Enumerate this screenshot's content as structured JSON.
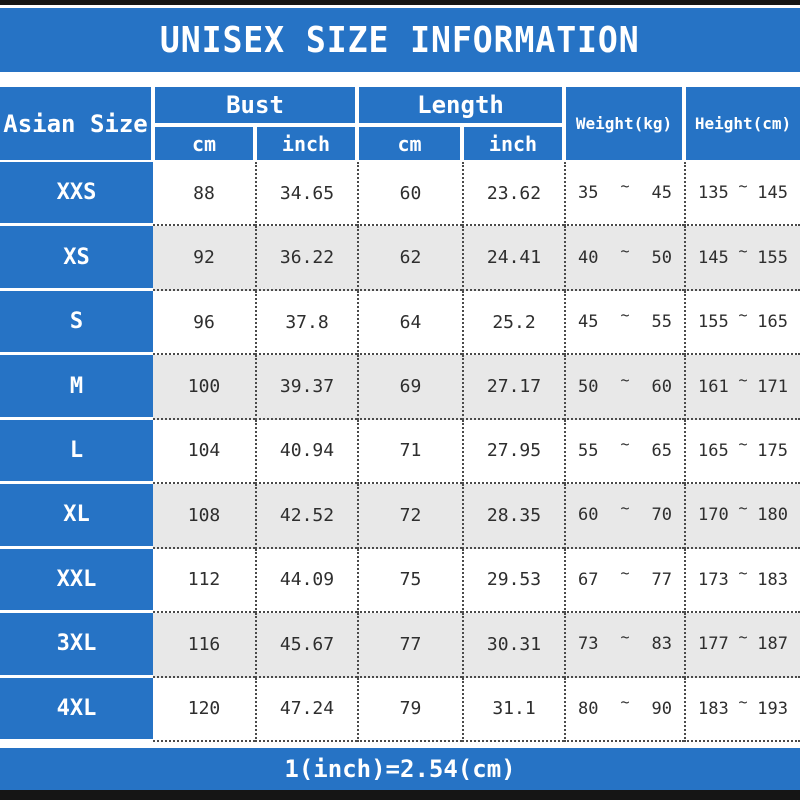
{
  "title": "UNISEX SIZE INFORMATION",
  "tilde": "~",
  "footer_note": "1(inch)=2.54(cm)",
  "colors": {
    "blue": "#2673c5",
    "alt_row": "#e8e8e8",
    "frame_bar": "#151515",
    "cell_text": "#2e2e2e"
  },
  "header": {
    "asian_size": "Asian Size",
    "bust": "Bust",
    "length": "Length",
    "bust_cm": "cm",
    "bust_inch": "inch",
    "length_cm": "cm",
    "length_inch": "inch",
    "weight": "Weight(kg)",
    "height": "Height(cm)"
  },
  "chart_data": {
    "type": "table",
    "title": "UNISEX SIZE INFORMATION",
    "columns": [
      "Asian Size",
      "Bust cm",
      "Bust inch",
      "Length cm",
      "Length inch",
      "Weight(kg)",
      "Height(cm)"
    ],
    "rows": [
      {
        "size": "XXS",
        "bust_cm": "88",
        "bust_inch": "34.65",
        "length_cm": "60",
        "length_inch": "23.62",
        "weight": [
          "35",
          "45"
        ],
        "height": [
          "135",
          "145"
        ]
      },
      {
        "size": "XS",
        "bust_cm": "92",
        "bust_inch": "36.22",
        "length_cm": "62",
        "length_inch": "24.41",
        "weight": [
          "40",
          "50"
        ],
        "height": [
          "145",
          "155"
        ]
      },
      {
        "size": "S",
        "bust_cm": "96",
        "bust_inch": "37.8",
        "length_cm": "64",
        "length_inch": "25.2",
        "weight": [
          "45",
          "55"
        ],
        "height": [
          "155",
          "165"
        ]
      },
      {
        "size": "M",
        "bust_cm": "100",
        "bust_inch": "39.37",
        "length_cm": "69",
        "length_inch": "27.17",
        "weight": [
          "50",
          "60"
        ],
        "height": [
          "161",
          "171"
        ]
      },
      {
        "size": "L",
        "bust_cm": "104",
        "bust_inch": "40.94",
        "length_cm": "71",
        "length_inch": "27.95",
        "weight": [
          "55",
          "65"
        ],
        "height": [
          "165",
          "175"
        ]
      },
      {
        "size": "XL",
        "bust_cm": "108",
        "bust_inch": "42.52",
        "length_cm": "72",
        "length_inch": "28.35",
        "weight": [
          "60",
          "70"
        ],
        "height": [
          "170",
          "180"
        ]
      },
      {
        "size": "XXL",
        "bust_cm": "112",
        "bust_inch": "44.09",
        "length_cm": "75",
        "length_inch": "29.53",
        "weight": [
          "67",
          "77"
        ],
        "height": [
          "173",
          "183"
        ]
      },
      {
        "size": "3XL",
        "bust_cm": "116",
        "bust_inch": "45.67",
        "length_cm": "77",
        "length_inch": "30.31",
        "weight": [
          "73",
          "83"
        ],
        "height": [
          "177",
          "187"
        ]
      },
      {
        "size": "4XL",
        "bust_cm": "120",
        "bust_inch": "47.24",
        "length_cm": "79",
        "length_inch": "31.1",
        "weight": [
          "80",
          "90"
        ],
        "height": [
          "183",
          "193"
        ]
      }
    ]
  }
}
